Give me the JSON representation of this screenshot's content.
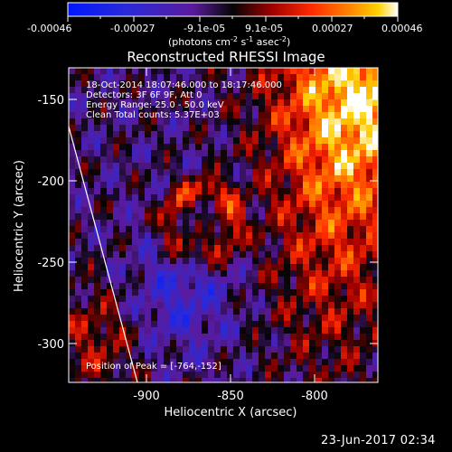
{
  "colorbar": {
    "ticks": [
      "-0.00046",
      "-0.00027",
      "-9.1e-05",
      "9.1e-05",
      "0.00027",
      "0.00046"
    ],
    "units_main": "(photons cm",
    "units_exp1": "-2",
    "units_mid": " s",
    "units_exp2": "-1",
    "units_tail": " asec",
    "units_exp3": "-2",
    "units_close": ")"
  },
  "plot": {
    "title": "Reconstructed RHESSI Image",
    "xlabel": "Heliocentric X (arcsec)",
    "ylabel": "Heliocentric Y (arcsec)",
    "x_ticks": [
      "-900",
      "-850",
      "-800"
    ],
    "y_ticks": [
      "-150",
      "-200",
      "-250",
      "-300"
    ],
    "xlim": [
      -948,
      -790
    ],
    "ylim": [
      -325,
      -132
    ],
    "info": [
      "18-Oct-2014 18:07:46.000 to 18:17:46.000",
      "Detectors: 3F 6F 9F, Att 0",
      "Energy Range: 25.0 - 50.0 keV",
      "Clean     Total counts: 5.37E+03"
    ],
    "peak_label": "Position of Peak = [-764,-152]"
  },
  "footer": {
    "date": "23-Jun-2017 02:34"
  }
}
